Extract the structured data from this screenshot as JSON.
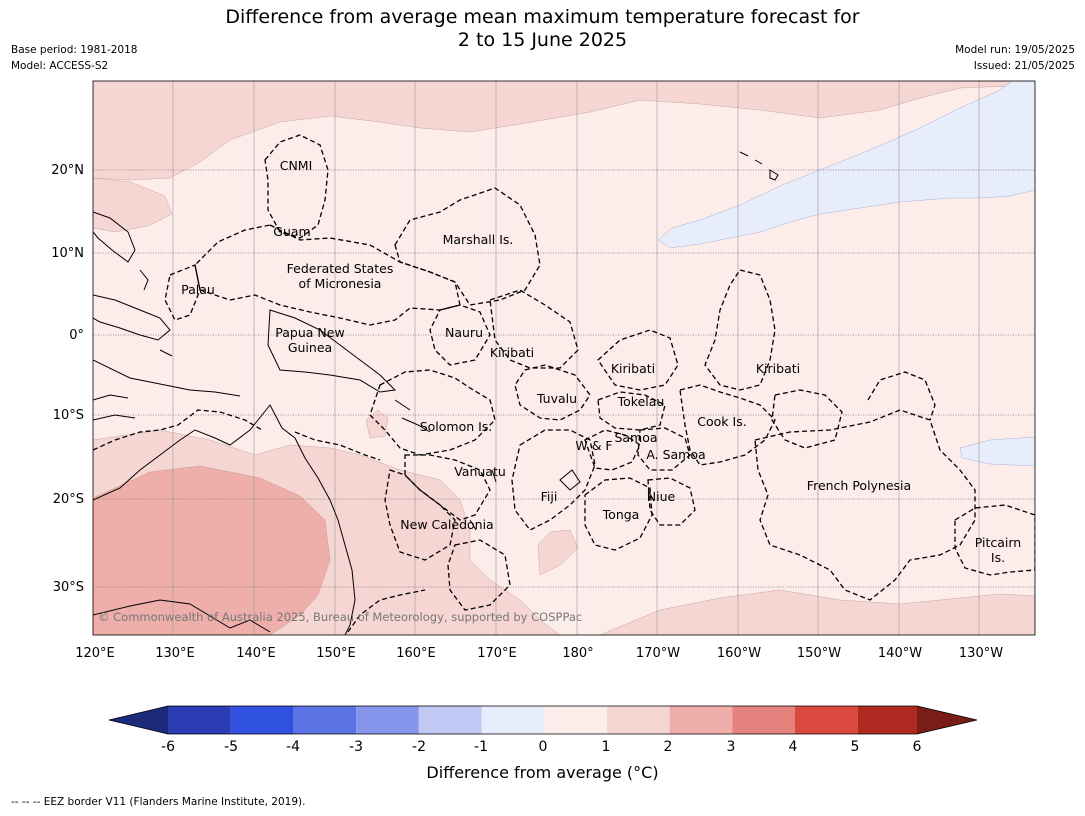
{
  "title_line1": "Difference from average mean maximum temperature forecast for",
  "title_line2": "2 to 15 June 2025",
  "base_period": "Base period: 1981-2018",
  "model": "Model: ACCESS-S2",
  "model_run": "Model run: 19/05/2025",
  "issued": "Issued: 21/05/2025",
  "copyright": "© Commonwealth of Australia 2025, Bureau of Meteorology, supported by COSPPac",
  "footnote": "--  --  -- EEZ border V11 (Flanders Marine Institute, 2019).",
  "lon_labels": [
    "120°E",
    "130°E",
    "140°E",
    "150°E",
    "160°E",
    "170°E",
    "180°",
    "170°W",
    "160°W",
    "150°W",
    "140°W",
    "130°W"
  ],
  "lat_labels": [
    "20°N",
    "10°N",
    "0°",
    "10°S",
    "20°S",
    "30°S"
  ],
  "colorbar": {
    "label": "Difference from average (",
    "label_unit": "°C)",
    "ticks": [
      "-6",
      "-5",
      "-4",
      "-3",
      "-2",
      "-1",
      "0",
      "1",
      "2",
      "3",
      "4",
      "5",
      "6"
    ],
    "colors": {
      "below_-6": "#1b2a7a",
      "-6_-5": "#2a3db3",
      "-5_-4": "#3050e0",
      "-4_-3": "#5a74e6",
      "-3_-2": "#8595ec",
      "-2_-1": "#c0c8f4",
      "-1_0": "#e8edfc",
      "0_1": "#fcecea",
      "1_2": "#f6d6d3",
      "2_3": "#eeaeaa",
      "3_4": "#e6827d",
      "4_5": "#d9493e",
      "5_6": "#ae2a20",
      "above_6": "#7a1c18"
    }
  },
  "places": [
    {
      "name": "CNMI"
    },
    {
      "name": "Guam"
    },
    {
      "name": "Marshall Is."
    },
    {
      "name": "Federated States"
    },
    {
      "name": "of Micronesia"
    },
    {
      "name": "Palau"
    },
    {
      "name": "Papua New"
    },
    {
      "name": "Guinea"
    },
    {
      "name": "Nauru"
    },
    {
      "name": "Kiribati"
    },
    {
      "name": "Kiribati"
    },
    {
      "name": "Kiribati"
    },
    {
      "name": "Tuvalu"
    },
    {
      "name": "Tokelau"
    },
    {
      "name": "Solomon Is."
    },
    {
      "name": "Samoa"
    },
    {
      "name": "W & F"
    },
    {
      "name": "A. Samoa"
    },
    {
      "name": "Cook Is."
    },
    {
      "name": "Vanuatu"
    },
    {
      "name": "Fiji"
    },
    {
      "name": "Niue"
    },
    {
      "name": "Tonga"
    },
    {
      "name": "French Polynesia"
    },
    {
      "name": "New Caledonia"
    },
    {
      "name": "Pitcairn"
    },
    {
      "name": "Is."
    }
  ]
}
